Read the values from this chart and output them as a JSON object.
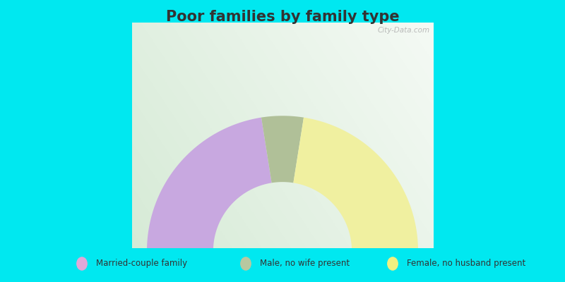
{
  "title": "Poor families by family type",
  "title_color": "#333333",
  "title_fontsize": 15,
  "background_color": "#00e8f0",
  "chart_background_top": "#e8f5e8",
  "chart_background_bottom": "#d0e8d0",
  "segments": [
    {
      "label": "Married-couple family",
      "value": 45,
      "color": "#c8a8e0"
    },
    {
      "label": "Male, no wife present",
      "value": 10,
      "color": "#b0c098"
    },
    {
      "label": "Female, no husband present",
      "value": 45,
      "color": "#f0f0a0"
    }
  ],
  "legend_marker_colors": [
    "#e0a8d8",
    "#b8c8a0",
    "#f0f080"
  ],
  "watermark": "City-Data.com",
  "border_thickness": 8
}
